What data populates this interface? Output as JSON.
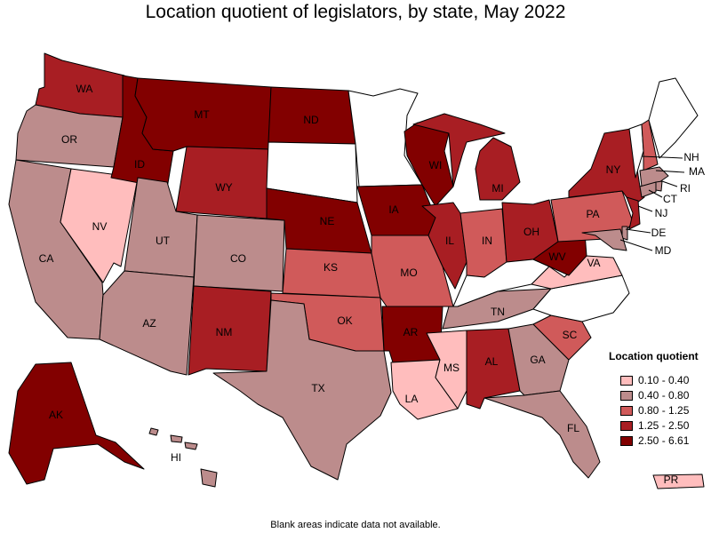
{
  "title": "Location quotient of legislators, by state, May 2022",
  "footnote": "Blank areas indicate data not available.",
  "legend": {
    "title": "Location quotient",
    "bins": [
      {
        "label": "0.10 - 0.40",
        "color": "#ffbdbd"
      },
      {
        "label": "0.40 - 0.80",
        "color": "#bc8c8c"
      },
      {
        "label": "0.80 - 1.25",
        "color": "#d05a5a"
      },
      {
        "label": "1.25 - 2.50",
        "color": "#a81e23"
      },
      {
        "label": "2.50 - 6.61",
        "color": "#820000"
      }
    ]
  },
  "states": {
    "WA": {
      "label": "WA",
      "bin": 3
    },
    "OR": {
      "label": "OR",
      "bin": 1
    },
    "CA": {
      "label": "CA",
      "bin": 1
    },
    "NV": {
      "label": "NV",
      "bin": 0
    },
    "ID": {
      "label": "ID",
      "bin": 4
    },
    "MT": {
      "label": "MT",
      "bin": 4
    },
    "WY": {
      "label": "WY",
      "bin": 3
    },
    "UT": {
      "label": "UT",
      "bin": 1
    },
    "CO": {
      "label": "CO",
      "bin": 1
    },
    "AZ": {
      "label": "AZ",
      "bin": 1
    },
    "NM": {
      "label": "NM",
      "bin": 3
    },
    "ND": {
      "label": "ND",
      "bin": 4
    },
    "SD": {
      "label": "",
      "bin": null
    },
    "NE": {
      "label": "NE",
      "bin": 4
    },
    "KS": {
      "label": "KS",
      "bin": 2
    },
    "OK": {
      "label": "OK",
      "bin": 2
    },
    "TX": {
      "label": "TX",
      "bin": 1
    },
    "MN": {
      "label": "",
      "bin": null
    },
    "IA": {
      "label": "IA",
      "bin": 4
    },
    "MO": {
      "label": "MO",
      "bin": 2
    },
    "AR": {
      "label": "AR",
      "bin": 4
    },
    "LA": {
      "label": "LA",
      "bin": 0
    },
    "WI": {
      "label": "WI",
      "bin": 4
    },
    "IL": {
      "label": "IL",
      "bin": 3
    },
    "MI": {
      "label": "MI",
      "bin": 3
    },
    "IN": {
      "label": "IN",
      "bin": 2
    },
    "OH": {
      "label": "OH",
      "bin": 3
    },
    "KY": {
      "label": "",
      "bin": null
    },
    "TN": {
      "label": "TN",
      "bin": 1
    },
    "MS": {
      "label": "MS",
      "bin": 0
    },
    "AL": {
      "label": "AL",
      "bin": 3
    },
    "GA": {
      "label": "GA",
      "bin": 1
    },
    "FL": {
      "label": "FL",
      "bin": 1
    },
    "SC": {
      "label": "SC",
      "bin": 2
    },
    "NC": {
      "label": "",
      "bin": null
    },
    "VA": {
      "label": "VA",
      "bin": 0
    },
    "WV": {
      "label": "WV",
      "bin": 4
    },
    "PA": {
      "label": "PA",
      "bin": 2
    },
    "NY": {
      "label": "NY",
      "bin": 3
    },
    "VT": {
      "label": "",
      "bin": null
    },
    "NH": {
      "label": "NH",
      "bin": 2
    },
    "ME": {
      "label": "",
      "bin": null
    },
    "MA": {
      "label": "MA",
      "bin": 1
    },
    "RI": {
      "label": "RI",
      "bin": 1
    },
    "CT": {
      "label": "CT",
      "bin": 1
    },
    "NJ": {
      "label": "NJ",
      "bin": 3
    },
    "DE": {
      "label": "DE",
      "bin": 1
    },
    "MD": {
      "label": "MD",
      "bin": 1
    },
    "AK": {
      "label": "AK",
      "bin": 4
    },
    "HI": {
      "label": "HI",
      "bin": 1
    },
    "PR": {
      "label": "PR",
      "bin": 0
    }
  }
}
